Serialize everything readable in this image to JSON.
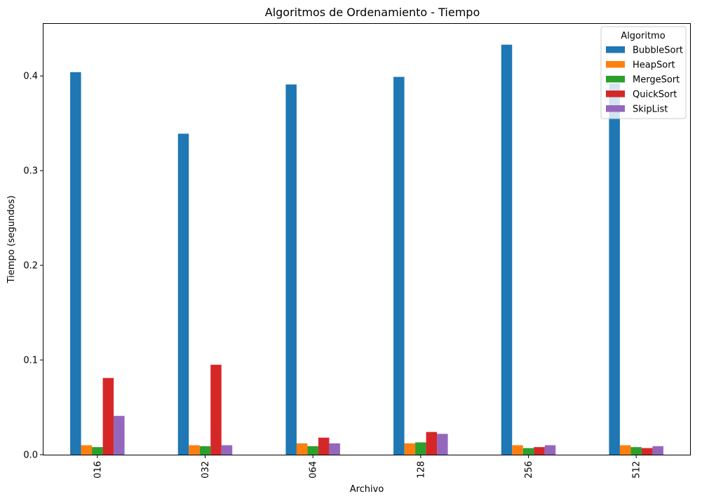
{
  "chart_data": {
    "type": "bar",
    "title": "Algoritmos de Ordenamiento - Tiempo",
    "xlabel": "Archivo",
    "ylabel": "Tiempo (segundos)",
    "categories": [
      "016",
      "032",
      "064",
      "128",
      "256",
      "512"
    ],
    "ylim": [
      0,
      0.455
    ],
    "yticks": [
      "0.0",
      "0.1",
      "0.2",
      "0.3",
      "0.4"
    ],
    "grid": false,
    "legend": {
      "title": "Algoritmo",
      "placement": "top-right"
    },
    "series": [
      {
        "name": "BubbleSort",
        "color": "#1f77b4",
        "values": [
          0.404,
          0.339,
          0.391,
          0.399,
          0.433,
          0.392
        ]
      },
      {
        "name": "HeapSort",
        "color": "#ff7f0e",
        "values": [
          0.01,
          0.01,
          0.012,
          0.012,
          0.01,
          0.01
        ]
      },
      {
        "name": "MergeSort",
        "color": "#2ca02c",
        "values": [
          0.008,
          0.009,
          0.009,
          0.013,
          0.007,
          0.008
        ]
      },
      {
        "name": "QuickSort",
        "color": "#d62728",
        "values": [
          0.081,
          0.095,
          0.018,
          0.024,
          0.008,
          0.007
        ]
      },
      {
        "name": "SkipList",
        "color": "#9467bd",
        "values": [
          0.041,
          0.01,
          0.012,
          0.022,
          0.01,
          0.009
        ]
      }
    ]
  }
}
